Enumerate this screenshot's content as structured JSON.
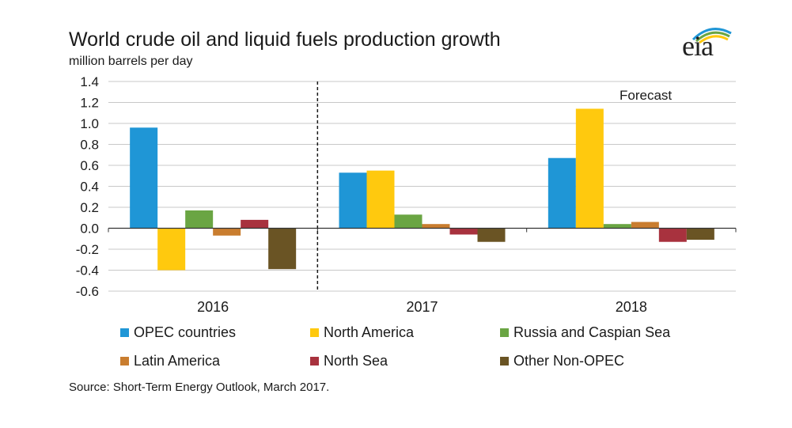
{
  "title": "World crude oil and liquid fuels production growth",
  "subtitle": "million barrels per day",
  "source": "Source: Short-Term Energy Outlook, March 2017.",
  "logo_text": "eia",
  "chart_data": {
    "type": "bar",
    "categories": [
      "2016",
      "2017",
      "2018"
    ],
    "ylim": [
      -0.6,
      1.4
    ],
    "yticks": [
      1.4,
      1.2,
      1.0,
      0.8,
      0.6,
      0.4,
      0.2,
      0.0,
      -0.2,
      -0.4,
      -0.6
    ],
    "ytick_labels": [
      "1.4",
      "1.2",
      "1.0",
      "0.8",
      "0.6",
      "0.4",
      "0.2",
      "0.0",
      "-0.2",
      "-0.4",
      "-0.6"
    ],
    "grid": true,
    "annotation": "Forecast",
    "forecast_divider_between": [
      "2016",
      "2017"
    ],
    "legend_position": "bottom",
    "series": [
      {
        "name": "OPEC countries",
        "color": "#1f96d6",
        "values": [
          0.96,
          0.53,
          0.67
        ]
      },
      {
        "name": "North America",
        "color": "#ffc90e",
        "values": [
          -0.4,
          0.55,
          1.14
        ]
      },
      {
        "name": "Russia and Caspian Sea",
        "color": "#6aa543",
        "values": [
          0.17,
          0.13,
          0.04
        ]
      },
      {
        "name": "Latin America",
        "color": "#c97d2f",
        "values": [
          -0.07,
          0.04,
          0.06
        ]
      },
      {
        "name": "North Sea",
        "color": "#a8323e",
        "values": [
          0.08,
          -0.06,
          -0.13
        ]
      },
      {
        "name": "Other Non-OPEC",
        "color": "#6a5424",
        "values": [
          -0.39,
          -0.13,
          -0.11
        ]
      }
    ]
  }
}
